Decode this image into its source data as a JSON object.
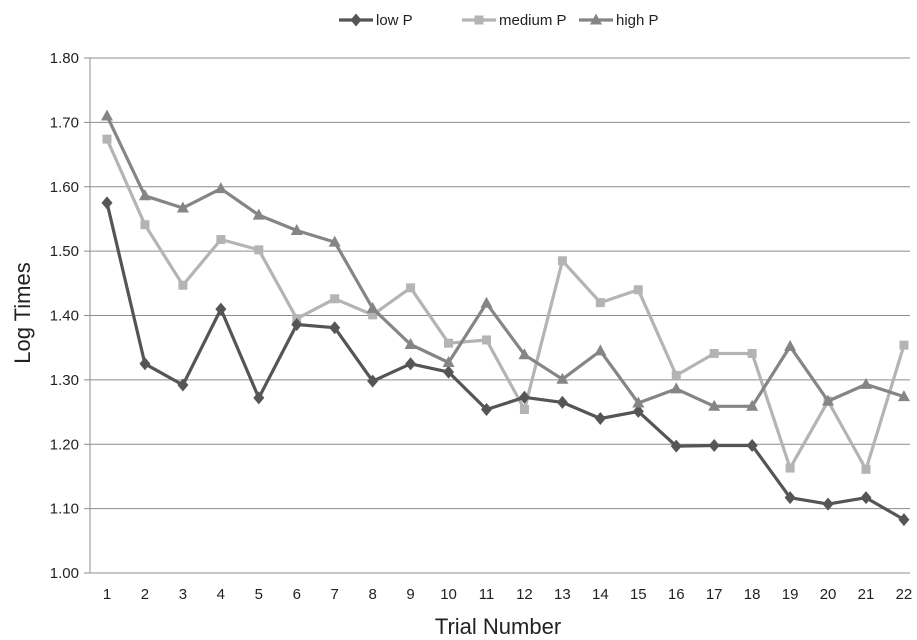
{
  "chart_data": {
    "type": "line",
    "title": "",
    "xlabel": "Trial Number",
    "ylabel": "Log Times",
    "ylim": [
      1.0,
      1.8
    ],
    "y_ticks": [
      "1.00",
      "1.10",
      "1.20",
      "1.30",
      "1.40",
      "1.50",
      "1.60",
      "1.70",
      "1.80"
    ],
    "y_tick_values": [
      1.0,
      1.1,
      1.2,
      1.3,
      1.4,
      1.5,
      1.6,
      1.7,
      1.8
    ],
    "x": [
      "1",
      "2",
      "3",
      "4",
      "5",
      "6",
      "7",
      "8",
      "9",
      "10",
      "11",
      "12",
      "13",
      "14",
      "15",
      "16",
      "17",
      "18",
      "19",
      "20",
      "21",
      "22"
    ],
    "grid": true,
    "legend_position": "top-center",
    "series": [
      {
        "name": "low P",
        "color": "#555555",
        "marker": "diamond",
        "values": [
          1.575,
          1.325,
          1.292,
          1.41,
          1.272,
          1.386,
          1.381,
          1.298,
          1.325,
          1.312,
          1.254,
          1.273,
          1.265,
          1.24,
          1.251,
          1.197,
          1.198,
          1.198,
          1.117,
          1.107,
          1.117,
          1.083
        ]
      },
      {
        "name": "medium P",
        "color": "#b4b4b4",
        "marker": "square",
        "values": [
          1.674,
          1.541,
          1.447,
          1.518,
          1.502,
          1.395,
          1.426,
          1.401,
          1.443,
          1.357,
          1.362,
          1.254,
          1.485,
          1.42,
          1.44,
          1.307,
          1.341,
          1.341,
          1.163,
          1.267,
          1.161,
          1.354
        ]
      },
      {
        "name": "high P",
        "color": "#858585",
        "marker": "triangle",
        "values": [
          1.71,
          1.586,
          1.567,
          1.597,
          1.556,
          1.532,
          1.514,
          1.411,
          1.355,
          1.327,
          1.419,
          1.339,
          1.301,
          1.345,
          1.264,
          1.286,
          1.259,
          1.259,
          1.352,
          1.267,
          1.293,
          1.274
        ]
      }
    ]
  }
}
